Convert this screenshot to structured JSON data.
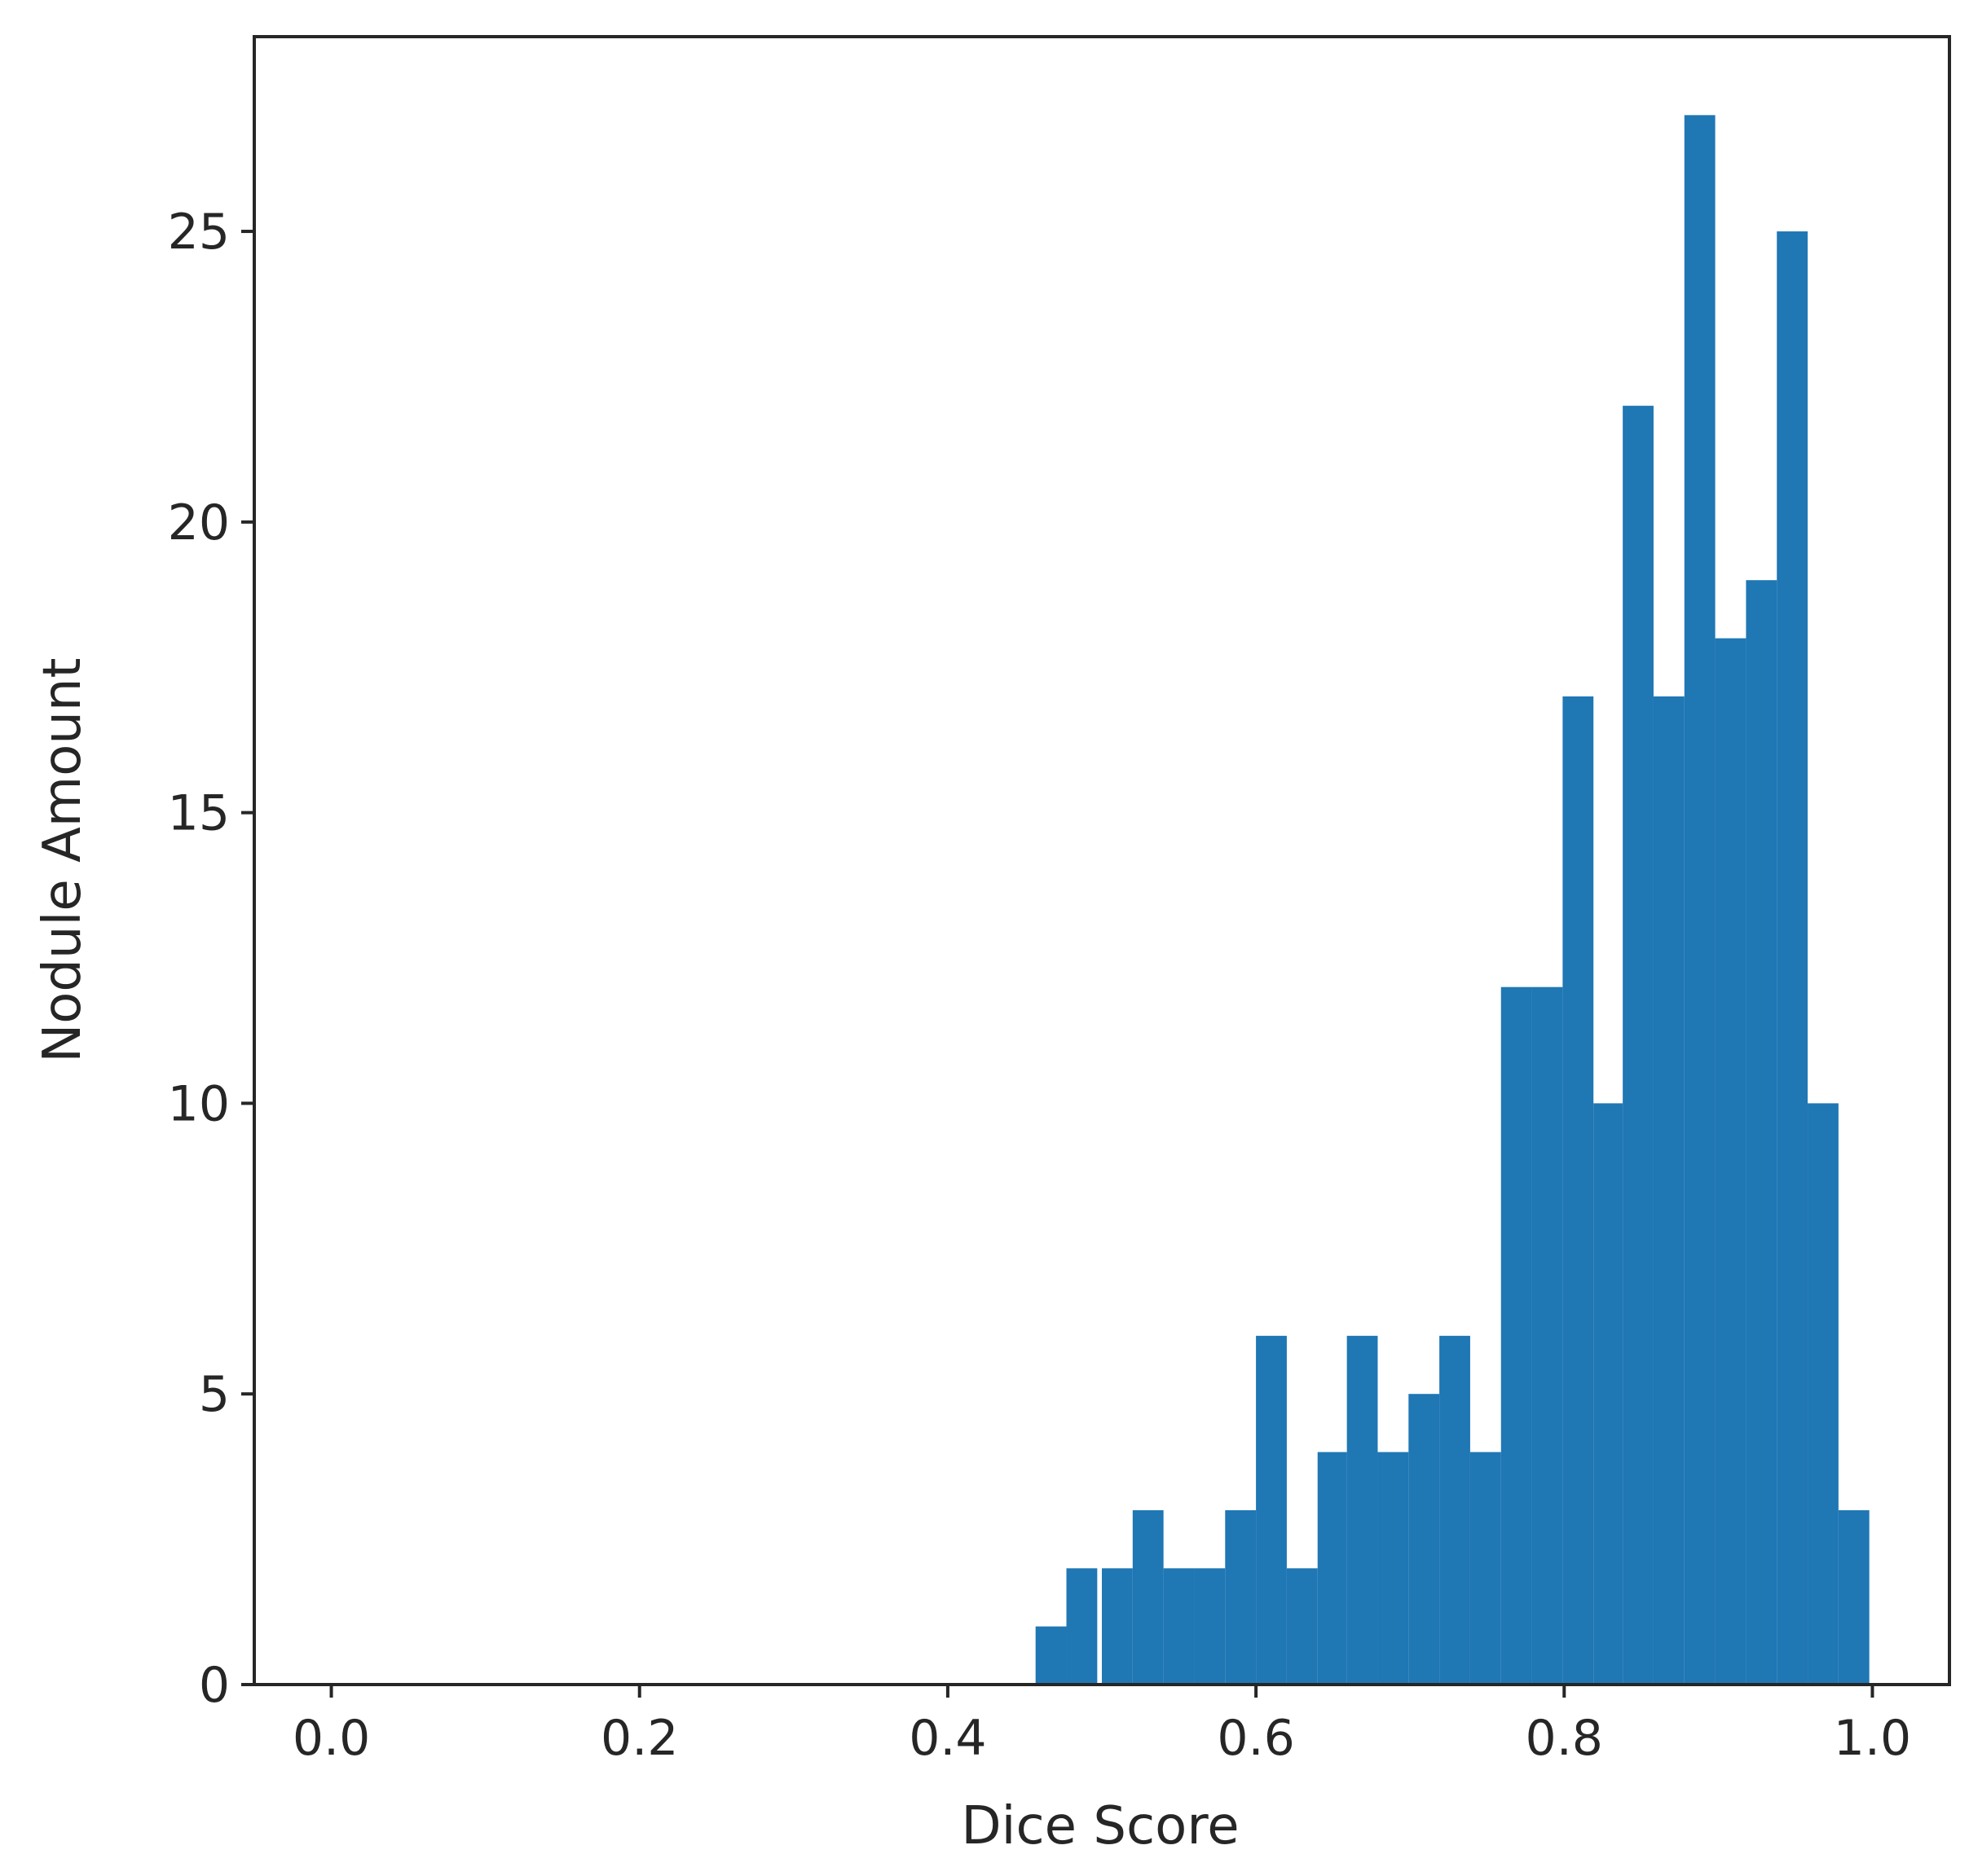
{
  "chart_data": {
    "type": "bar",
    "title": "",
    "xlabel": "Dice Score",
    "ylabel": "Nodule Amount",
    "xlim": [
      -0.05,
      1.05
    ],
    "ylim": [
      0,
      28.35
    ],
    "xticks": [
      "0.0",
      "0.2",
      "0.4",
      "0.6",
      "0.8",
      "1.0"
    ],
    "yticks": [
      "0",
      "5",
      "10",
      "15",
      "20",
      "25"
    ],
    "grid": false,
    "bar_color": "#1f77b4",
    "bins": [
      {
        "x0": 0.457,
        "x1": 0.477,
        "count": 1
      },
      {
        "x0": 0.477,
        "x1": 0.497,
        "count": 2
      },
      {
        "x0": 0.5,
        "x1": 0.52,
        "count": 2
      },
      {
        "x0": 0.52,
        "x1": 0.54,
        "count": 3
      },
      {
        "x0": 0.54,
        "x1": 0.56,
        "count": 2
      },
      {
        "x0": 0.56,
        "x1": 0.58,
        "count": 2
      },
      {
        "x0": 0.58,
        "x1": 0.6,
        "count": 3
      },
      {
        "x0": 0.6,
        "x1": 0.62,
        "count": 6
      },
      {
        "x0": 0.62,
        "x1": 0.64,
        "count": 2
      },
      {
        "x0": 0.64,
        "x1": 0.659,
        "count": 4
      },
      {
        "x0": 0.659,
        "x1": 0.679,
        "count": 6
      },
      {
        "x0": 0.679,
        "x1": 0.699,
        "count": 4
      },
      {
        "x0": 0.699,
        "x1": 0.719,
        "count": 5
      },
      {
        "x0": 0.719,
        "x1": 0.739,
        "count": 6
      },
      {
        "x0": 0.739,
        "x1": 0.759,
        "count": 4
      },
      {
        "x0": 0.759,
        "x1": 0.779,
        "count": 12
      },
      {
        "x0": 0.779,
        "x1": 0.799,
        "count": 12
      },
      {
        "x0": 0.799,
        "x1": 0.819,
        "count": 17
      },
      {
        "x0": 0.819,
        "x1": 0.838,
        "count": 10
      },
      {
        "x0": 0.838,
        "x1": 0.858,
        "count": 22
      },
      {
        "x0": 0.858,
        "x1": 0.878,
        "count": 17
      },
      {
        "x0": 0.878,
        "x1": 0.898,
        "count": 27
      },
      {
        "x0": 0.898,
        "x1": 0.918,
        "count": 18
      },
      {
        "x0": 0.918,
        "x1": 0.938,
        "count": 19
      },
      {
        "x0": 0.938,
        "x1": 0.958,
        "count": 25
      },
      {
        "x0": 0.958,
        "x1": 0.978,
        "count": 10
      },
      {
        "x0": 0.978,
        "x1": 0.998,
        "count": 3
      }
    ]
  }
}
